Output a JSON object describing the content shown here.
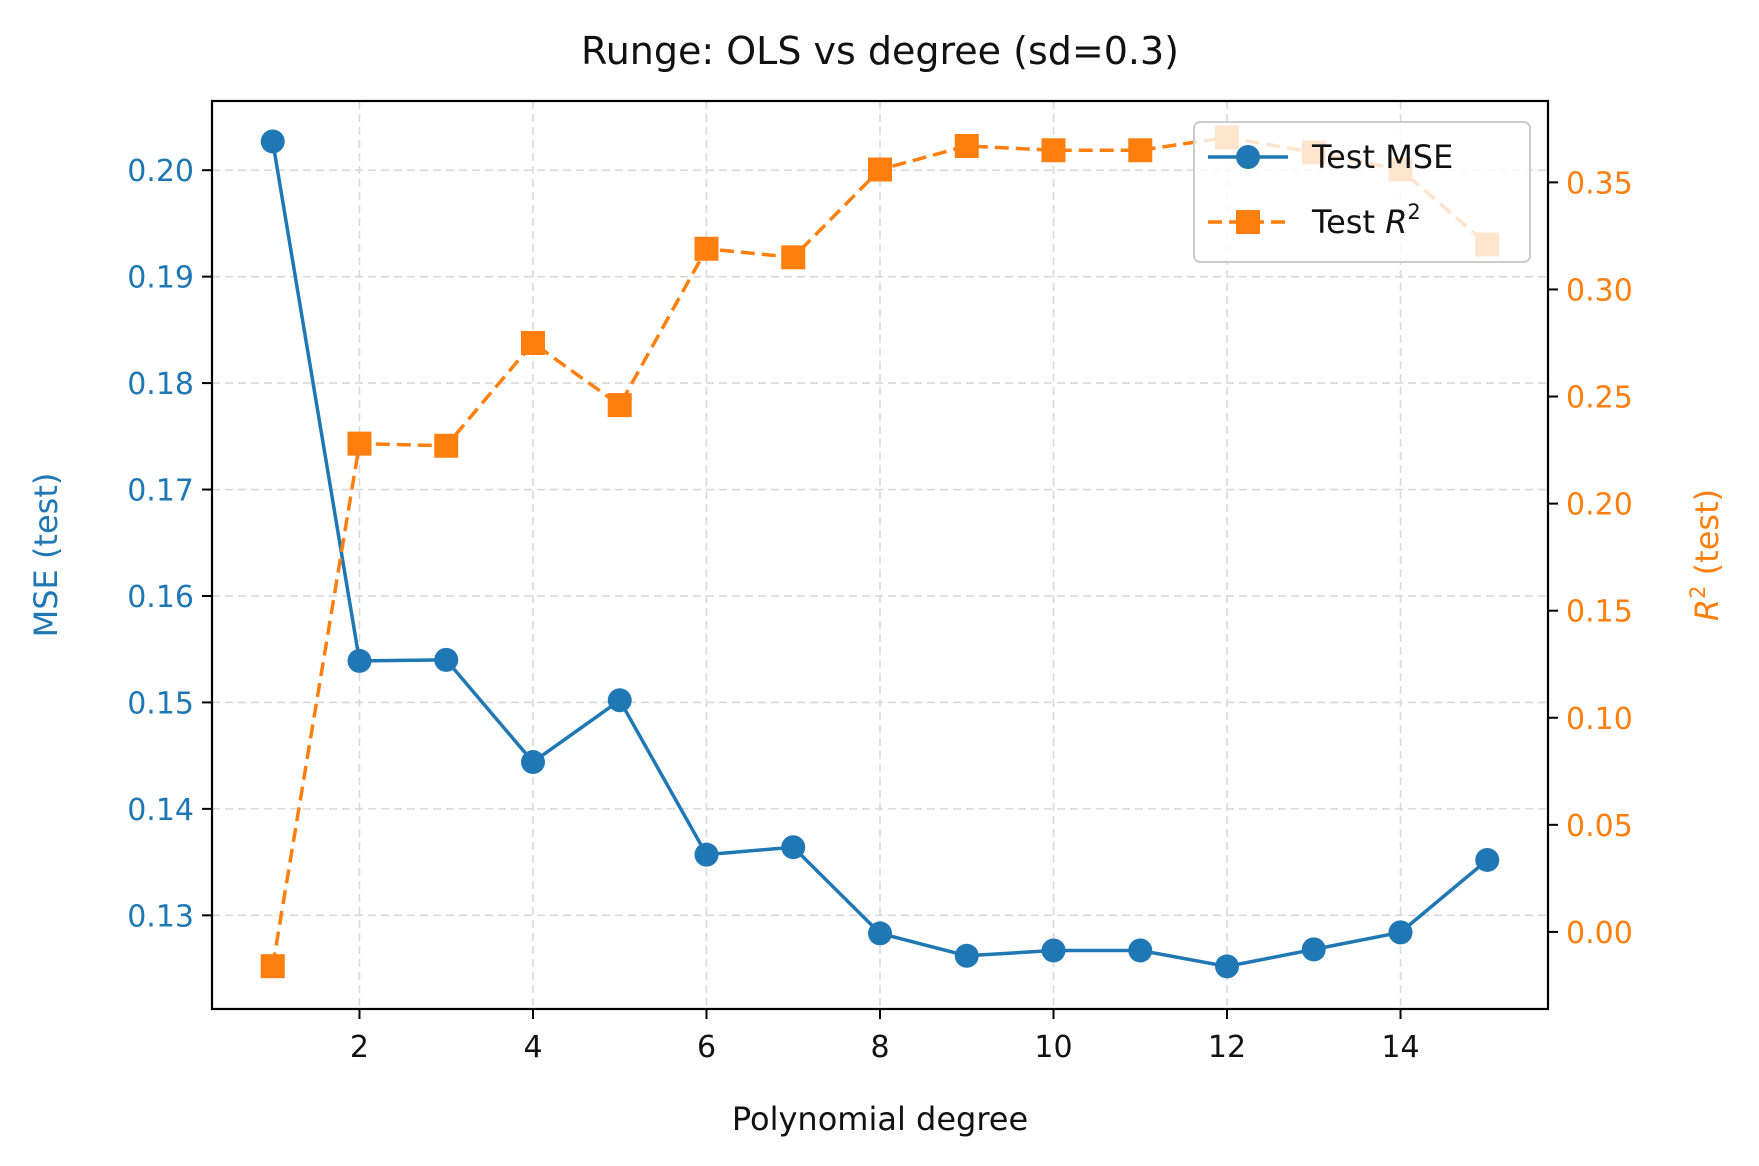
{
  "chart_data": {
    "type": "line",
    "title": "Runge: OLS vs degree (sd=0.3)",
    "xlabel": "Polynomial degree",
    "ylabel_left": "MSE (test)",
    "ylabel_right_base": "R",
    "ylabel_right_suffix": " (test)",
    "superscript": "2",
    "xlim": [
      0.3,
      15.7
    ],
    "ylim_left": [
      0.1212,
      0.2065
    ],
    "ylim_right": [
      -0.036,
      0.388
    ],
    "x_ticks": [
      2,
      4,
      6,
      8,
      10,
      12,
      14
    ],
    "x_tick_labels": [
      "2",
      "4",
      "6",
      "8",
      "10",
      "12",
      "14"
    ],
    "y_left_ticks": [
      0.13,
      0.14,
      0.15,
      0.16,
      0.17,
      0.18,
      0.19,
      0.2
    ],
    "y_left_tick_labels": [
      "0.13",
      "0.14",
      "0.15",
      "0.16",
      "0.17",
      "0.18",
      "0.19",
      "0.20"
    ],
    "y_right_ticks": [
      0.0,
      0.05,
      0.1,
      0.15,
      0.2,
      0.25,
      0.3,
      0.35
    ],
    "y_right_tick_labels": [
      "0.00",
      "0.05",
      "0.10",
      "0.15",
      "0.20",
      "0.25",
      "0.30",
      "0.35"
    ],
    "x": [
      1,
      2,
      3,
      4,
      5,
      6,
      7,
      8,
      9,
      10,
      11,
      12,
      13,
      14,
      15
    ],
    "grid": true,
    "legend_position": "top-right",
    "series": [
      {
        "name": "Test MSE",
        "axis": "left",
        "color": "#1f77b4",
        "line": "solid",
        "marker": "circle",
        "values": [
          0.2027,
          0.1539,
          0.154,
          0.1444,
          0.1502,
          0.1357,
          0.1364,
          0.1283,
          0.1262,
          0.1267,
          0.1267,
          0.1252,
          0.1268,
          0.1284,
          0.1352
        ]
      },
      {
        "name_base": "Test ",
        "name_math": "R",
        "axis": "right",
        "color": "#ff7f0e",
        "line": "dashed",
        "marker": "square",
        "values": [
          -0.016,
          0.228,
          0.227,
          0.275,
          0.246,
          0.319,
          0.315,
          0.356,
          0.367,
          0.365,
          0.365,
          0.371,
          0.364,
          0.356,
          0.321
        ]
      }
    ]
  }
}
